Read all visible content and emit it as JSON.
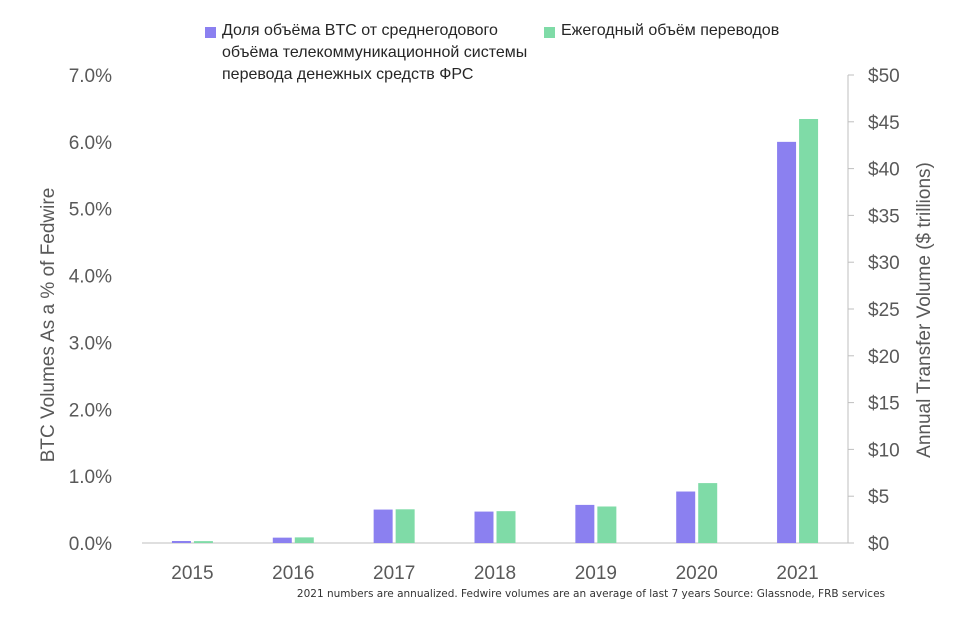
{
  "chart_data": {
    "type": "bar",
    "categories": [
      "2015",
      "2016",
      "2017",
      "2018",
      "2019",
      "2020",
      "2021"
    ],
    "series": [
      {
        "name": "Доля объёма BTC от среднегодового объёма телекоммуникационной системы перевода денежных средств ФРС",
        "axis": "left",
        "color": "#8b80f0",
        "values": [
          0.03,
          0.08,
          0.5,
          0.47,
          0.57,
          0.77,
          6.0
        ]
      },
      {
        "name": "Ежегодный объём переводов",
        "axis": "right",
        "color": "#7fdba7",
        "values": [
          0.2,
          0.6,
          3.6,
          3.4,
          3.9,
          6.4,
          45.3
        ]
      }
    ],
    "ylabel": "BTC Volumes As a % of Fedwire",
    "y2label": "Annual Transfer Volume ($ trillions)",
    "ylim": [
      0,
      7
    ],
    "y2lim": [
      0,
      50
    ],
    "yticks": [
      "0.0%",
      "1.0%",
      "2.0%",
      "3.0%",
      "4.0%",
      "5.0%",
      "6.0%",
      "7.0%"
    ],
    "y2ticks": [
      "$0",
      "$5",
      "$10",
      "$15",
      "$20",
      "$25",
      "$30",
      "$35",
      "$40",
      "$45",
      "$50"
    ],
    "grid": false,
    "legend_position": "top"
  },
  "legend": {
    "item1_lines": [
      "Доля объёма BTC от среднегодового",
      "объёма телекоммуникационной системы",
      "перевода денежных средств ФРС"
    ],
    "item2": "Ежегодный объём переводов"
  },
  "footnote": "2021 numbers are annualized. Fedwire volumes are an average of last 7 years Source: Glassnode, FRB services"
}
